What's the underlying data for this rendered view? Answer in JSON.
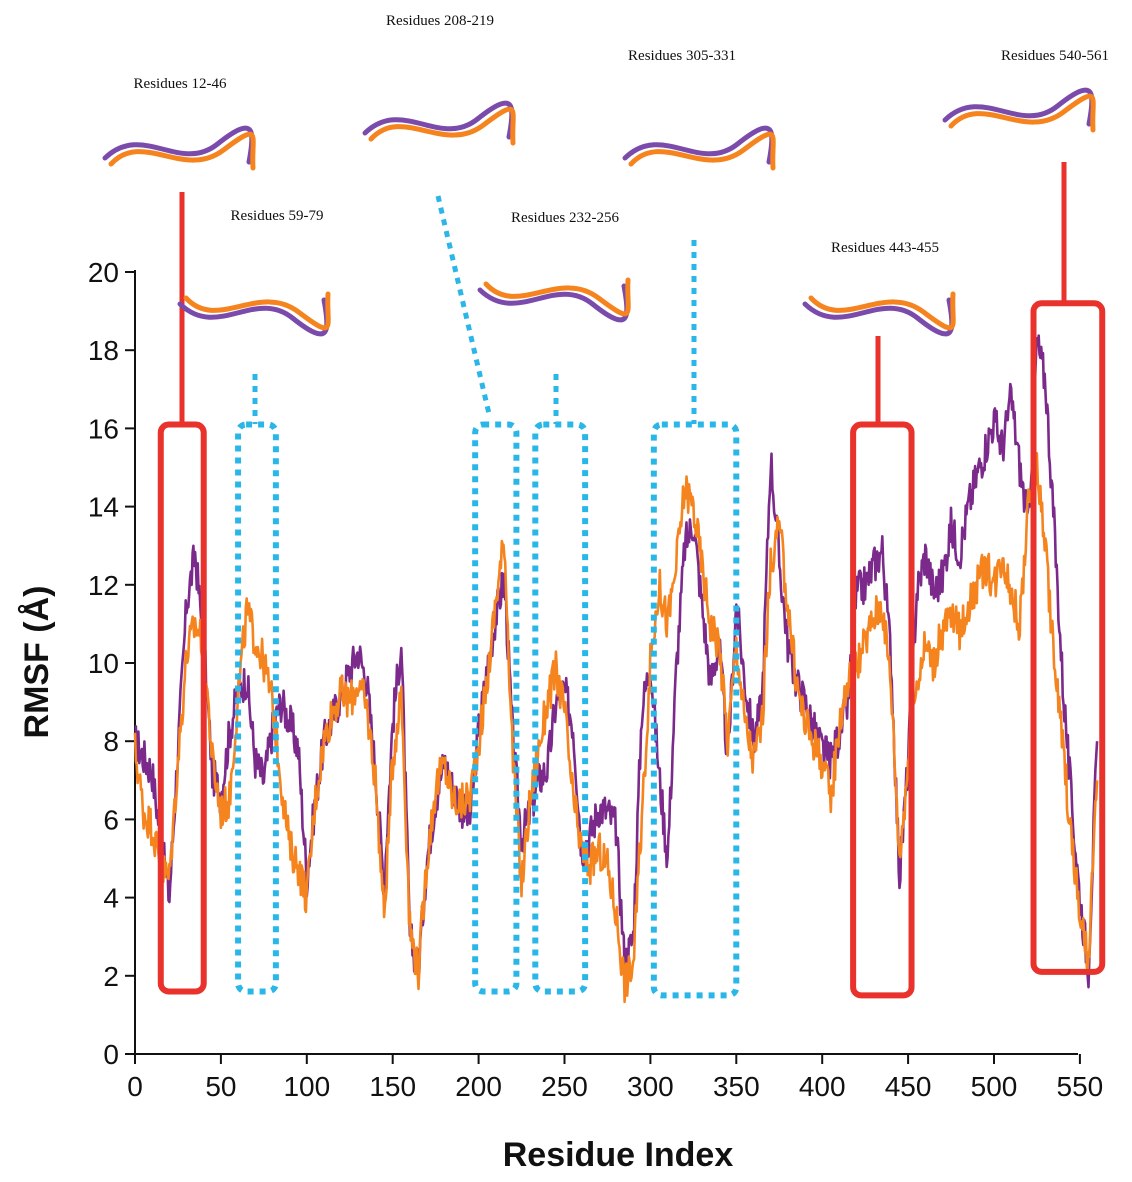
{
  "chart_data": {
    "type": "line",
    "title": "",
    "xlabel": "Residue Index",
    "ylabel": "RMSF (Å)",
    "xlim": [
      0,
      561
    ],
    "ylim": [
      0,
      20
    ],
    "x_ticks": [
      "0",
      "50",
      "100",
      "150",
      "200",
      "250",
      "300",
      "350",
      "400",
      "450",
      "500",
      "550"
    ],
    "y_ticks": [
      "0",
      "2",
      "4",
      "6",
      "8",
      "10",
      "12",
      "14",
      "16",
      "18",
      "20"
    ],
    "grid": false,
    "legend": "none",
    "series": [
      {
        "color": "#7b2a8c",
        "x": [
          0,
          5,
          10,
          15,
          20,
          25,
          30,
          35,
          40,
          45,
          50,
          55,
          60,
          65,
          70,
          75,
          80,
          85,
          90,
          95,
          100,
          105,
          110,
          115,
          120,
          125,
          130,
          135,
          140,
          145,
          150,
          155,
          160,
          165,
          170,
          175,
          180,
          185,
          190,
          195,
          200,
          205,
          210,
          215,
          220,
          225,
          230,
          235,
          240,
          245,
          250,
          255,
          260,
          265,
          270,
          275,
          280,
          285,
          290,
          295,
          300,
          305,
          310,
          315,
          320,
          325,
          330,
          335,
          340,
          345,
          350,
          355,
          360,
          365,
          370,
          375,
          380,
          385,
          390,
          395,
          400,
          405,
          410,
          415,
          420,
          425,
          430,
          435,
          440,
          445,
          450,
          455,
          460,
          465,
          470,
          475,
          480,
          485,
          490,
          495,
          500,
          505,
          510,
          515,
          520,
          525,
          530,
          535,
          540,
          545,
          550,
          555,
          560
        ],
        "values": [
          8.0,
          7.6,
          7.2,
          5.5,
          4.0,
          7.8,
          11.5,
          12.8,
          10.5,
          7.2,
          6.6,
          8.2,
          9.3,
          9.6,
          7.5,
          7.0,
          8.3,
          9.0,
          8.5,
          7.8,
          4.5,
          6.5,
          8.0,
          8.6,
          9.2,
          9.8,
          10.3,
          9.5,
          7.2,
          4.3,
          8.5,
          10.5,
          3.0,
          2.2,
          5.0,
          6.5,
          7.5,
          6.8,
          6.3,
          6.0,
          8.3,
          9.8,
          11.2,
          12.2,
          8.0,
          5.5,
          6.2,
          7.0,
          7.3,
          9.0,
          9.3,
          8.4,
          5.2,
          5.6,
          6.3,
          6.2,
          5.8,
          2.3,
          3.0,
          8.8,
          10.0,
          7.2,
          5.0,
          9.8,
          13.0,
          13.6,
          11.5,
          9.5,
          10.5,
          7.5,
          11.5,
          9.5,
          8.0,
          9.0,
          15.3,
          12.6,
          10.5,
          9.5,
          9.0,
          8.3,
          7.8,
          7.5,
          8.2,
          9.0,
          11.8,
          12.0,
          12.5,
          12.9,
          10.2,
          4.5,
          7.5,
          11.8,
          12.8,
          11.8,
          12.2,
          13.5,
          12.8,
          14.0,
          14.8,
          15.5,
          16.2,
          15.5,
          16.8,
          15.0,
          13.5,
          18.2,
          17.2,
          13.5,
          9.5,
          6.5,
          4.0,
          2.2,
          8.0
        ]
      },
      {
        "color": "#f5841f",
        "x": [
          0,
          5,
          10,
          15,
          20,
          25,
          30,
          35,
          40,
          45,
          50,
          55,
          60,
          65,
          70,
          75,
          80,
          85,
          90,
          95,
          100,
          105,
          110,
          115,
          120,
          125,
          130,
          135,
          140,
          145,
          150,
          155,
          160,
          165,
          170,
          175,
          180,
          185,
          190,
          195,
          200,
          205,
          210,
          215,
          220,
          225,
          230,
          235,
          240,
          245,
          250,
          255,
          260,
          265,
          270,
          275,
          280,
          285,
          290,
          295,
          300,
          305,
          310,
          315,
          320,
          325,
          330,
          335,
          340,
          345,
          350,
          355,
          360,
          365,
          370,
          375,
          380,
          385,
          390,
          395,
          400,
          405,
          410,
          415,
          420,
          425,
          430,
          435,
          440,
          445,
          450,
          455,
          460,
          465,
          470,
          475,
          480,
          485,
          490,
          495,
          500,
          505,
          510,
          515,
          520,
          525,
          530,
          535,
          540,
          545,
          550,
          555,
          560
        ],
        "values": [
          7.8,
          6.2,
          5.8,
          4.8,
          4.5,
          7.5,
          10.2,
          11.0,
          10.5,
          7.5,
          6.2,
          6.5,
          9.2,
          11.3,
          10.6,
          10.0,
          9.0,
          7.0,
          5.3,
          4.8,
          4.0,
          6.5,
          8.0,
          8.8,
          9.2,
          9.0,
          9.5,
          8.8,
          7.0,
          3.5,
          7.5,
          9.3,
          3.2,
          2.1,
          5.0,
          6.8,
          7.4,
          6.5,
          6.4,
          6.6,
          8.0,
          9.5,
          11.6,
          13.2,
          7.5,
          4.3,
          6.5,
          7.8,
          9.0,
          9.8,
          8.8,
          6.5,
          5.2,
          4.8,
          5.2,
          4.8,
          3.6,
          1.8,
          2.3,
          6.0,
          10.0,
          12.0,
          11.0,
          12.5,
          14.5,
          14.0,
          12.5,
          11.0,
          10.5,
          8.0,
          10.5,
          8.5,
          7.5,
          8.5,
          12.5,
          13.5,
          11.5,
          9.5,
          8.5,
          8.0,
          7.5,
          6.5,
          8.5,
          9.5,
          10.0,
          10.5,
          11.2,
          11.5,
          9.5,
          5.0,
          7.5,
          9.5,
          10.5,
          10.0,
          10.8,
          11.2,
          10.8,
          11.5,
          12.0,
          12.5,
          12.0,
          12.8,
          11.8,
          11.0,
          14.0,
          15.0,
          13.0,
          10.0,
          8.0,
          5.5,
          3.5,
          2.3,
          7.0
        ]
      }
    ],
    "annotations": [
      {
        "label": "Residues 12-46",
        "style": "solid-red",
        "range": [
          15,
          40
        ],
        "box_y": [
          1.6,
          16.1
        ]
      },
      {
        "label": "Residues 59-79",
        "style": "dotted-blue",
        "range": [
          60,
          82
        ],
        "box_y": [
          1.6,
          16.1
        ]
      },
      {
        "label": "Residues 208-219",
        "style": "dotted-blue",
        "range": [
          198,
          222
        ],
        "box_y": [
          1.6,
          16.1
        ]
      },
      {
        "label": "Residues 232-256",
        "style": "dotted-blue",
        "range": [
          233,
          262
        ],
        "box_y": [
          1.6,
          16.1
        ]
      },
      {
        "label": "Residues 305-331",
        "style": "dotted-blue",
        "range": [
          302,
          350
        ],
        "box_y": [
          1.5,
          16.1
        ]
      },
      {
        "label": "Residues 443-455",
        "style": "solid-red",
        "range": [
          418,
          452
        ],
        "box_y": [
          1.5,
          16.1
        ]
      },
      {
        "label": "Residues 540-561",
        "style": "solid-red",
        "range": [
          523,
          563
        ],
        "box_y": [
          2.1,
          19.2
        ]
      }
    ]
  }
}
